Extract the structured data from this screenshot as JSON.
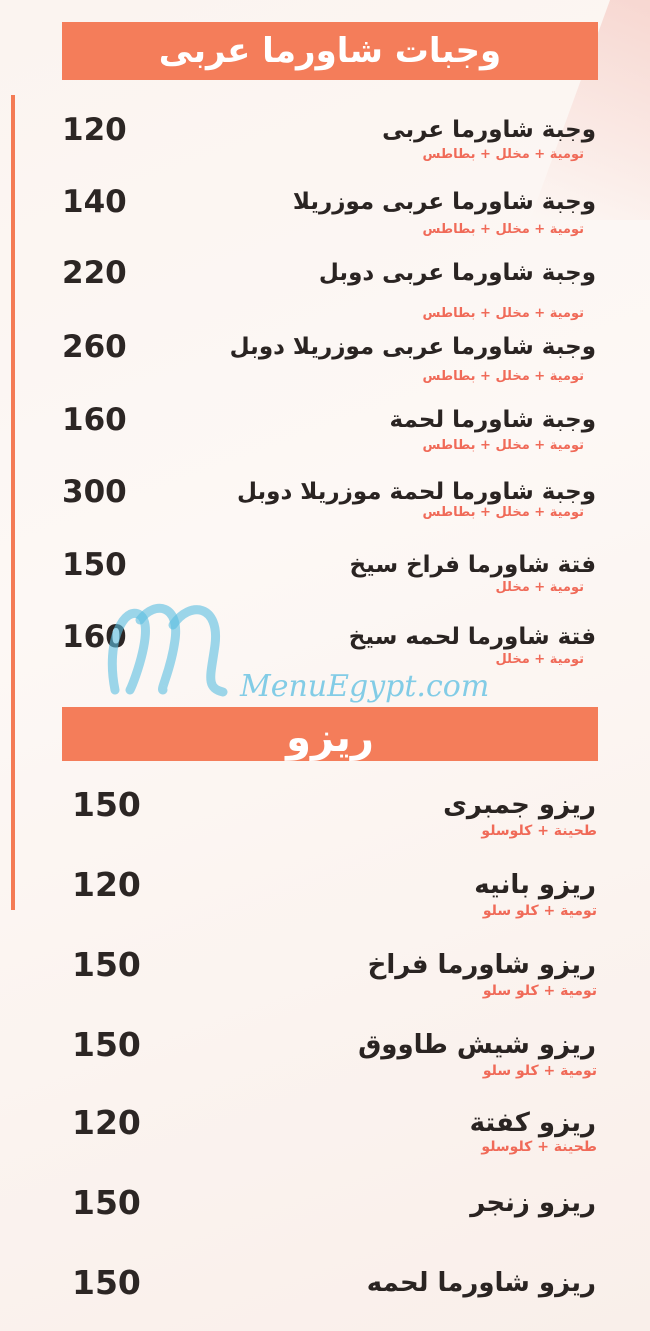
{
  "watermark": "MenuEgypt.com",
  "sections": [
    {
      "title": "وجبات شاورما عربى",
      "items": [
        {
          "name": "وجبة شاورما عربى",
          "desc": "تومية + مخلل + بطاطس",
          "price": "120"
        },
        {
          "name": "وجبة شاورما عربى موزريلا",
          "desc": "تومية + مخلل + بطاطس",
          "price": "140"
        },
        {
          "name": "وجبة شاورما عربى دوبل",
          "desc": "تومية + مخلل + بطاطس",
          "price": "220"
        },
        {
          "name": "وجبة شاورما عربى موزريلا دوبل",
          "desc": "تومية + مخلل + بطاطس",
          "price": "260"
        },
        {
          "name": "وجبة شاورما لحمة",
          "desc": "تومية + مخلل + بطاطس",
          "price": "160"
        },
        {
          "name": "وجبة شاورما لحمة موزريلا دوبل",
          "desc": "تومية + مخلل + بطاطس",
          "price": "300"
        },
        {
          "name": "فتة شاورما فراخ سيخ",
          "desc": "تومية + مخلل",
          "price": "150"
        },
        {
          "name": "فتة شاورما لحمه سيخ",
          "desc": "تومية + مخلل",
          "price": "160"
        }
      ]
    },
    {
      "title": "ريزو",
      "items": [
        {
          "name": "ريزو جمبرى",
          "desc": "طحينة + كلوسلو",
          "price": "150"
        },
        {
          "name": "ريزو بانيه",
          "desc": "تومية + كلو سلو",
          "price": "120"
        },
        {
          "name": "ريزو شاورما فراخ",
          "desc": "تومية + كلو سلو",
          "price": "150"
        },
        {
          "name": "ريزو شيش طاووق",
          "desc": "تومية + كلو سلو",
          "price": "150"
        },
        {
          "name": "ريزو كفتة",
          "desc": "طحينة + كلوسلو",
          "price": "120"
        },
        {
          "name": "ريزو زنجر",
          "desc": "",
          "price": "150"
        },
        {
          "name": "ريزو شاورما لحمه",
          "desc": "",
          "price": "150"
        }
      ]
    }
  ]
}
